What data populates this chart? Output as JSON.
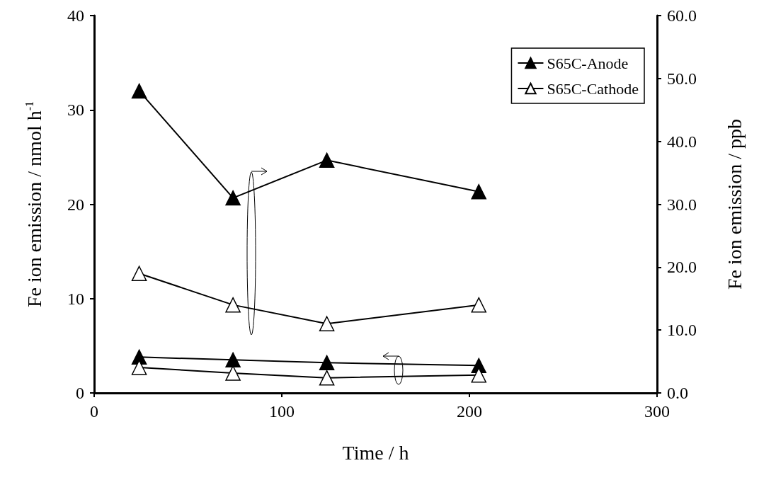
{
  "chart_data": {
    "type": "line",
    "xlabel": "Time / h",
    "ylabel": "Fe ion emission / nmol h$^{-1}$",
    "y2label": "Fe ion emission / ppb",
    "x": [
      24,
      74,
      124,
      205
    ],
    "series": [
      {
        "name": "S65C-Anode",
        "color": "#000000",
        "marker": "triangle",
        "axis": "y2",
        "values": [
          48,
          31,
          37,
          32
        ]
      },
      {
        "name": "S65C-Cathode",
        "color": "#000000",
        "marker": "triangle_open",
        "axis": "y2",
        "values": [
          19,
          14,
          11,
          14
        ]
      },
      {
        "color": "#000000",
        "marker": "triangle",
        "axis": "y",
        "values": [
          3.8,
          3.5,
          3.2,
          2.9
        ]
      },
      {
        "color": "#000000",
        "marker": "triangle_open",
        "axis": "y",
        "values": [
          2.7,
          2.1,
          1.6,
          1.9
        ]
      }
    ],
    "xlim": [
      0,
      300
    ],
    "xticks": [
      0,
      100,
      200,
      300
    ],
    "ylim": [
      0,
      40
    ],
    "yticks": [
      0,
      10,
      20,
      30,
      40
    ],
    "y2lim": [
      0,
      60
    ],
    "y2ticks": [
      {
        "value": 0,
        "label": "0.0"
      },
      {
        "value": 10,
        "label": "10.0"
      },
      {
        "value": 20,
        "label": "20.0"
      },
      {
        "value": 30,
        "label": "30.0"
      },
      {
        "value": 40,
        "label": "40.0"
      },
      {
        "value": 50,
        "label": "50.0"
      },
      {
        "value": 60,
        "label": "60.0"
      }
    ],
    "legend": "top right",
    "grid": false,
    "line_style": "solid"
  }
}
